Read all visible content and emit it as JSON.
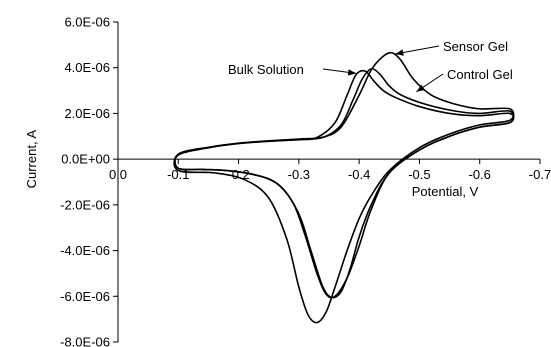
{
  "chart_data": {
    "type": "line",
    "title": "",
    "xlabel": "Potential, V",
    "ylabel": "Current, A",
    "x_reversed": true,
    "xlim": [
      0.0,
      -0.7
    ],
    "ylim": [
      -8e-06,
      6e-06
    ],
    "x_ticks": [
      0.0,
      -0.1,
      -0.2,
      -0.3,
      -0.4,
      -0.5,
      -0.6,
      -0.7
    ],
    "x_tick_labels": [
      "0.0",
      "-0.1",
      "-0.2",
      "-0.3",
      "-0.4",
      "-0.5",
      "-0.6",
      "-0.7"
    ],
    "y_ticks": [
      6e-06,
      4e-06,
      2e-06,
      0.0,
      -2e-06,
      -4e-06,
      -6e-06,
      -8e-06
    ],
    "y_tick_labels": [
      "6.0E-06",
      "4.0E-06",
      "2.0E-06",
      "0.0E+00",
      "-2.0E-06",
      "-4.0E-06",
      "-6.0E-06",
      "-8.0E-06"
    ],
    "grid": false,
    "legend": "none",
    "line_color": "#000000",
    "series": [
      {
        "name": "Bulk Solution",
        "x": [
          -0.1,
          -0.15,
          -0.2,
          -0.25,
          -0.3,
          -0.33,
          -0.36,
          -0.38,
          -0.395,
          -0.41,
          -0.425,
          -0.44,
          -0.46,
          -0.5,
          -0.55,
          -0.6,
          -0.65,
          -0.65,
          -0.6,
          -0.55,
          -0.5,
          -0.45,
          -0.42,
          -0.4,
          -0.38,
          -0.36,
          -0.345,
          -0.33,
          -0.31,
          -0.29,
          -0.26,
          -0.22,
          -0.18,
          -0.14,
          -0.1
        ],
        "y": [
          1.8e-07,
          5e-07,
          6.8e-07,
          7.8e-07,
          8.5e-07,
          9.5e-07,
          1.6e-06,
          2.8e-06,
          3.7e-06,
          3.85e-06,
          3.4e-06,
          3e-06,
          2.7e-06,
          2.3e-06,
          2e-06,
          1.9e-06,
          2e-06,
          1.6e-06,
          1.4e-06,
          1e-06,
          4e-07,
          -6e-07,
          -2.2e-06,
          -3.8e-06,
          -5.2e-06,
          -6e-06,
          -5.9e-06,
          -5e-06,
          -3.3e-06,
          -1.9e-06,
          -1e-06,
          -6.5e-07,
          -5e-07,
          -4.5e-07,
          -4e-07
        ]
      },
      {
        "name": "Sensor Gel",
        "x": [
          -0.1,
          -0.15,
          -0.2,
          -0.25,
          -0.3,
          -0.34,
          -0.37,
          -0.4,
          -0.42,
          -0.44,
          -0.455,
          -0.47,
          -0.49,
          -0.52,
          -0.56,
          -0.6,
          -0.65,
          -0.65,
          -0.6,
          -0.55,
          -0.5,
          -0.45,
          -0.42,
          -0.4,
          -0.38,
          -0.36,
          -0.345,
          -0.33,
          -0.315,
          -0.3,
          -0.28,
          -0.25,
          -0.21,
          -0.16,
          -0.1
        ],
        "y": [
          2.2e-07,
          5.2e-07,
          7e-07,
          8e-07,
          8.8e-07,
          9.6e-07,
          1.4e-06,
          2.8e-06,
          3.9e-06,
          4.5e-06,
          4.65e-06,
          4.3e-06,
          3.5e-06,
          2.8e-06,
          2.4e-06,
          2.2e-06,
          2.2e-06,
          1.7e-06,
          1.5e-06,
          1.1e-06,
          5e-07,
          -5e-07,
          -1.6e-06,
          -2.6e-06,
          -4e-06,
          -5.6e-06,
          -6.7e-06,
          -7.15e-06,
          -6.8e-06,
          -5.6e-06,
          -3.5e-06,
          -1.7e-06,
          -9e-07,
          -6e-07,
          -5e-07
        ]
      },
      {
        "name": "Control Gel",
        "x": [
          -0.1,
          -0.15,
          -0.2,
          -0.25,
          -0.3,
          -0.34,
          -0.37,
          -0.39,
          -0.405,
          -0.42,
          -0.435,
          -0.45,
          -0.47,
          -0.51,
          -0.56,
          -0.6,
          -0.65,
          -0.65,
          -0.6,
          -0.55,
          -0.5,
          -0.45,
          -0.42,
          -0.4,
          -0.385,
          -0.37,
          -0.355,
          -0.34,
          -0.32,
          -0.3,
          -0.27,
          -0.23,
          -0.18,
          -0.14,
          -0.1
        ],
        "y": [
          2e-07,
          5e-07,
          6.9e-07,
          7.9e-07,
          8.6e-07,
          9.5e-07,
          1.5e-06,
          2.6e-06,
          3.5e-06,
          3.95e-06,
          3.7e-06,
          3.2e-06,
          2.8e-06,
          2.4e-06,
          2.1e-06,
          2e-06,
          2.1e-06,
          1.6e-06,
          1.4e-06,
          1e-06,
          4e-07,
          -6e-07,
          -2e-06,
          -3.4e-06,
          -4.8e-06,
          -5.8e-06,
          -6.05e-06,
          -5.6e-06,
          -4e-06,
          -2.4e-06,
          -1.2e-06,
          -7e-07,
          -5e-07,
          -4.5e-07,
          -4e-07
        ]
      }
    ],
    "annotations": [
      {
        "text": "Bulk Solution",
        "target_series": "Bulk Solution",
        "target_x": -0.395,
        "target_y": 3.75e-06
      },
      {
        "text": "Sensor Gel",
        "target_series": "Sensor Gel",
        "target_x": -0.46,
        "target_y": 4.6e-06
      },
      {
        "text": "Control Gel",
        "target_series": "Control Gel",
        "target_x": -0.495,
        "target_y": 2.95e-06
      }
    ]
  }
}
